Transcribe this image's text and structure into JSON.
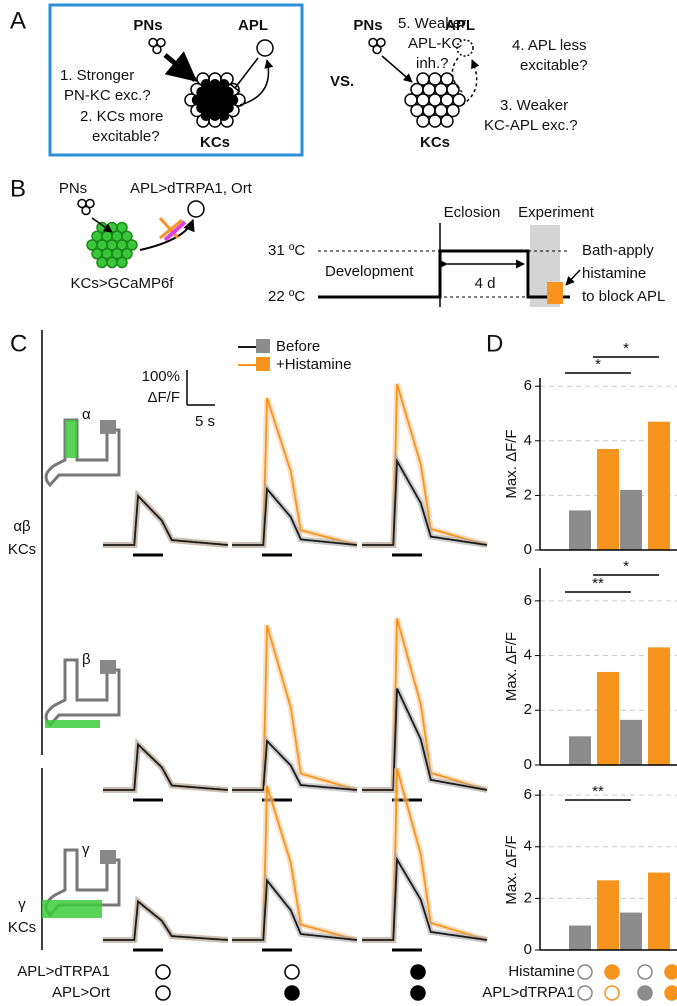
{
  "panel_labels": [
    "A",
    "B",
    "C",
    "D"
  ],
  "panel_a": {
    "left": {
      "pns": "PNs",
      "apl": "APL",
      "kcs": "KCs",
      "h1": [
        "1. Stronger",
        "PN-KC exc.?"
      ],
      "h2": [
        "2. KCs more",
        "excitable?"
      ]
    },
    "vs": "VS.",
    "right": {
      "pns": "PNs",
      "apl": "APL",
      "kcs": "KCs",
      "h5": [
        "5. Weaker",
        "APL-KC",
        "inh.?"
      ],
      "h4": [
        "4. APL less",
        "excitable?"
      ],
      "h3": [
        "3. Weaker",
        "KC-APL exc.?"
      ]
    }
  },
  "panel_b": {
    "pns": "PNs",
    "apl": "APL>dTRPA1, Ort",
    "kcs": "KCs>GCaMP6f",
    "eclosion": "Eclosion",
    "experiment": "Experiment",
    "t_high": "31 ºC",
    "t_low": "22 ºC",
    "development": "Development",
    "duration": "4 d",
    "note": [
      "Bath-apply",
      "histamine",
      "to block APL"
    ]
  },
  "panel_c": {
    "scale": {
      "y": "100%",
      "y_unit": "ΔF/F",
      "x": "5 s"
    },
    "legend": [
      "Before",
      "+Histamine"
    ],
    "colors": [
      "#1a1a1a",
      "#f7941d"
    ],
    "groups": [
      [
        "αβ",
        "KCs"
      ],
      [
        "γ",
        "KCs"
      ]
    ],
    "rows": [
      {
        "label": "α",
        "peaks": [
          [
            1.4,
            1.4
          ],
          [
            1.6,
            4.2
          ],
          [
            2.4,
            4.6
          ]
        ]
      },
      {
        "label": "β",
        "peaks": [
          [
            1.3,
            1.3
          ],
          [
            1.4,
            4.7
          ],
          [
            2.9,
            4.9
          ]
        ]
      },
      {
        "label": "γ",
        "peaks": [
          [
            1.1,
            1.1
          ],
          [
            1.7,
            4.4
          ],
          [
            2.3,
            4.9
          ]
        ]
      }
    ],
    "conditions": {
      "labels": [
        "APL>dTRPA1",
        "APL>Ort"
      ],
      "filled": [
        [
          false,
          false
        ],
        [
          false,
          true
        ],
        [
          true,
          true
        ]
      ]
    }
  },
  "panel_d": {
    "type": "bar",
    "ylabel": "Max. ΔF/F",
    "colors": [
      "#8c8c8c",
      "#f7941d",
      "#8c8c8c",
      "#f7941d"
    ],
    "charts": [
      {
        "values": [
          1.45,
          3.7,
          2.2,
          4.7
        ],
        "ylim": [
          0,
          6.3
        ],
        "yticks": [
          0,
          2,
          4,
          6
        ],
        "significance": [
          {
            "bars": [
              0,
              2
            ],
            "label": "*"
          },
          {
            "bars": [
              1,
              3
            ],
            "label": "*"
          }
        ]
      },
      {
        "values": [
          1.05,
          3.4,
          1.65,
          4.3
        ],
        "ylim": [
          0,
          7.2
        ],
        "yticks": [
          0,
          2,
          4,
          6
        ],
        "significance": [
          {
            "bars": [
              0,
              2
            ],
            "label": "**"
          },
          {
            "bars": [
              1,
              3
            ],
            "label": "*"
          }
        ]
      },
      {
        "values": [
          0.95,
          2.7,
          1.45,
          3.0
        ],
        "ylim": [
          0,
          6.2
        ],
        "yticks": [
          0,
          2,
          4,
          6
        ],
        "significance": [
          {
            "bars": [
              0,
              2
            ],
            "label": "**"
          }
        ]
      }
    ],
    "legend": {
      "labels": [
        "Histamine",
        "APL>dTRPA1"
      ],
      "histamine": [
        false,
        true,
        false,
        true
      ],
      "trpa1": [
        false,
        false,
        true,
        true
      ]
    }
  }
}
